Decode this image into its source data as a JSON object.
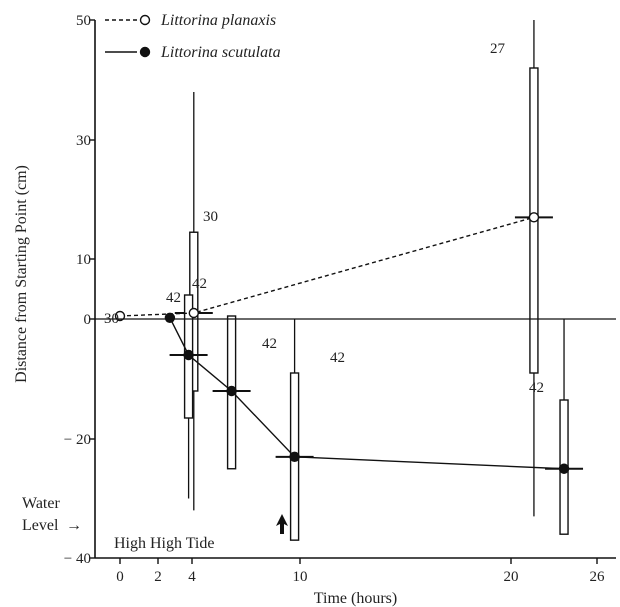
{
  "chart_data": {
    "type": "line",
    "xlabel": "Time (hours)",
    "ylabel": "Distance from Starting Point (cm)",
    "x_ticks": [
      0,
      2,
      4,
      10,
      20,
      26
    ],
    "x_tick_labels": [
      "0",
      "2",
      "4",
      "10",
      "20",
      "26"
    ],
    "y_ticks": [
      -40,
      -20,
      0,
      10,
      30,
      50
    ],
    "y_tick_labels": [
      "− 40",
      "− 20",
      "0",
      "10",
      "30",
      "50"
    ],
    "xlim": [
      -1,
      27
    ],
    "ylim": [
      -40,
      50
    ],
    "grid": false,
    "legend_position": "top-left",
    "series": [
      {
        "name": "Littorina planaxis",
        "line_style": "dashed",
        "marker": "open-circle",
        "x": [
          0,
          4.1,
          21.6
        ],
        "mean": [
          0.5,
          1.0,
          17.0
        ],
        "bar_low": [
          null,
          -12,
          -9
        ],
        "bar_high": [
          null,
          14.5,
          42
        ],
        "range_low": [
          null,
          -32,
          -33
        ],
        "range_high": [
          null,
          38,
          50
        ],
        "n_labels": [
          "30",
          "30",
          "27"
        ]
      },
      {
        "name": "Littorina scutulata",
        "line_style": "solid",
        "marker": "filled-circle",
        "x": [
          2.7,
          3.8,
          6.2,
          9.7,
          23.7
        ],
        "mean": [
          0.2,
          -6,
          -12,
          -23,
          -25
        ],
        "bar_low": [
          null,
          -16.5,
          -25,
          -37,
          -36
        ],
        "bar_high": [
          null,
          4,
          0.5,
          -9,
          -13.5
        ],
        "range_low": [
          null,
          -30,
          null,
          -37,
          -36
        ],
        "range_high": [
          null,
          -5,
          null,
          0,
          0
        ],
        "n_labels": [
          "42",
          "42",
          "42",
          "42",
          "42"
        ]
      }
    ],
    "annotations": {
      "water_level_label": "Water Level",
      "water_level_arrow": "→",
      "tide_label": "High High Tide"
    }
  }
}
